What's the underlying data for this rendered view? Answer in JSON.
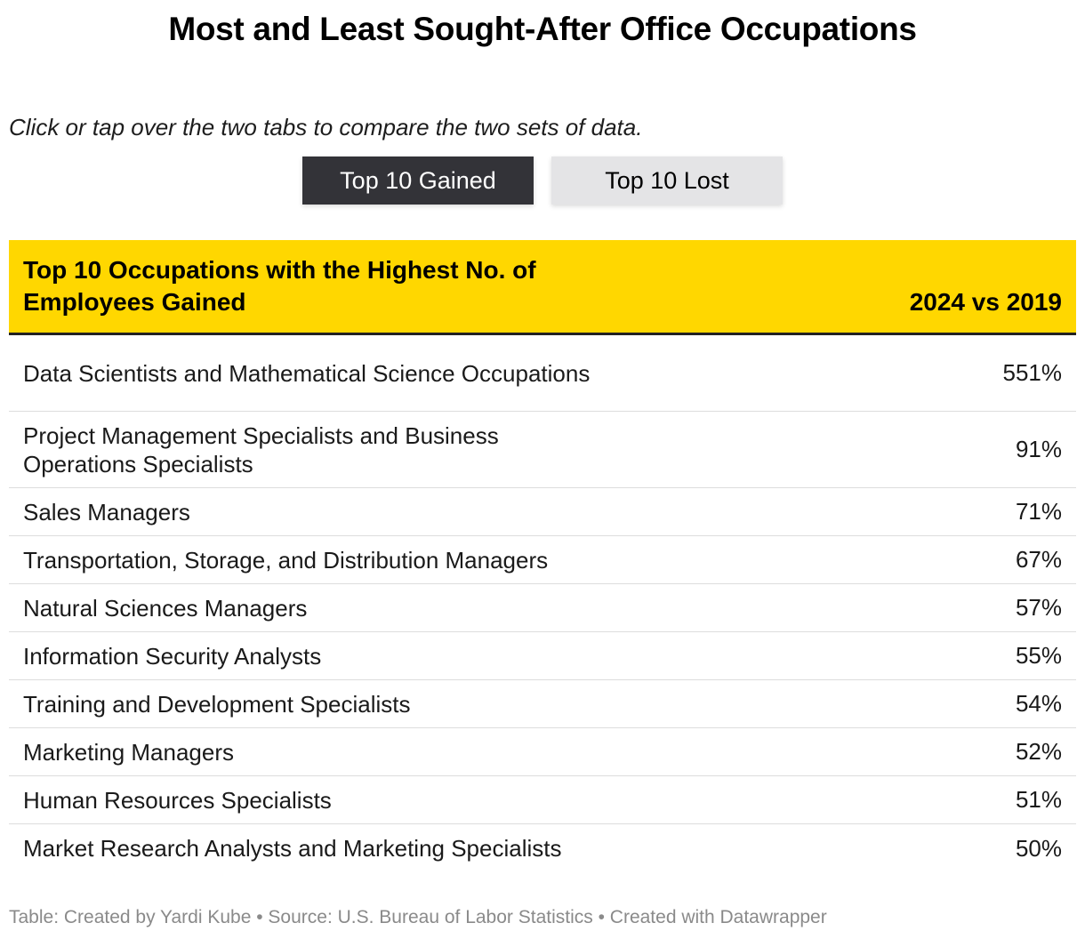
{
  "title": "Most and Least Sought-After Office Occupations",
  "intro": "Click or tap over the two tabs to compare the two sets of data.",
  "tabs": [
    {
      "label": "Top 10 Gained",
      "active": true
    },
    {
      "label": "Top 10 Lost",
      "active": false
    }
  ],
  "colors": {
    "header_bg": "#ffd700",
    "active_tab_bg": "#333338",
    "inactive_tab_bg": "#e4e4e6",
    "footer_text": "#8a8a8a"
  },
  "chart_data": {
    "type": "table",
    "columns": [
      "Top 10 Occupations with the Highest No. of Employees Gained",
      "2024 vs 2019"
    ],
    "rows": [
      {
        "occupation": "Data Scientists and Mathematical Science Occupations",
        "change": "551%"
      },
      {
        "occupation": "Project Management Specialists and Business Operations Specialists",
        "change": "91%"
      },
      {
        "occupation": "Sales Managers",
        "change": "71%"
      },
      {
        "occupation": "Transportation, Storage, and Distribution Managers",
        "change": "67%"
      },
      {
        "occupation": "Natural Sciences Managers",
        "change": "57%"
      },
      {
        "occupation": "Information Security Analysts",
        "change": "55%"
      },
      {
        "occupation": "Training and Development Specialists",
        "change": "54%"
      },
      {
        "occupation": "Marketing Managers",
        "change": "52%"
      },
      {
        "occupation": "Human Resources Specialists",
        "change": "51%"
      },
      {
        "occupation": "Market Research Analysts and Marketing Specialists",
        "change": "50%"
      }
    ]
  },
  "footer": "Table: Created by Yardi Kube • Source: U.S. Bureau of Labor Statistics • Created with Datawrapper"
}
